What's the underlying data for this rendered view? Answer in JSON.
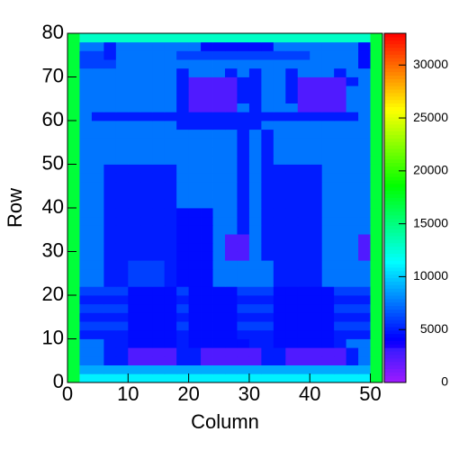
{
  "chart_data": {
    "type": "heatmap",
    "xlabel": "Column",
    "ylabel": "Row",
    "xlim": [
      0,
      52
    ],
    "ylim": [
      0,
      80
    ],
    "zlim": [
      0,
      33000
    ],
    "xticks": [
      0,
      10,
      20,
      30,
      40,
      50
    ],
    "yticks": [
      0,
      10,
      20,
      30,
      40,
      50,
      60,
      70,
      80
    ],
    "zticks": [
      0,
      5000,
      10000,
      15000,
      20000,
      25000,
      30000
    ],
    "z": [
      [
        17000,
        11000,
        11000,
        11000,
        11000,
        11000,
        11000,
        11000,
        11000,
        11000,
        11000,
        11000,
        11000,
        11000,
        11000,
        11000,
        11000,
        11000,
        11000,
        11000,
        11000,
        11000,
        11000,
        11000,
        11000,
        17000
      ],
      [
        17000,
        9000,
        9000,
        9000,
        9000,
        9000,
        9000,
        9000,
        9000,
        9000,
        9000,
        9000,
        9000,
        9000,
        9000,
        9000,
        9000,
        9000,
        9000,
        9000,
        9000,
        9000,
        9000,
        9000,
        9000,
        17000
      ],
      [
        17000,
        7500,
        7500,
        5000,
        5000,
        2500,
        2500,
        2500,
        2500,
        5000,
        5000,
        2500,
        2500,
        2500,
        2500,
        2500,
        5000,
        5000,
        2500,
        2500,
        2500,
        2500,
        2500,
        5000,
        7500,
        17000
      ],
      [
        17000,
        7500,
        7500,
        5000,
        5000,
        2500,
        2500,
        2500,
        2500,
        5000,
        5000,
        2500,
        2500,
        2500,
        2500,
        2500,
        5000,
        5000,
        2500,
        2500,
        2500,
        2500,
        2500,
        5000,
        7500,
        17000
      ],
      [
        17000,
        7500,
        7500,
        5000,
        5000,
        4500,
        4500,
        4500,
        4500,
        5000,
        4500,
        4500,
        4500,
        4500,
        4500,
        5000,
        5000,
        4500,
        4500,
        4500,
        4500,
        4500,
        5000,
        7500,
        7500,
        17000
      ],
      [
        17000,
        5000,
        5000,
        5000,
        5000,
        4500,
        4500,
        4500,
        4500,
        5000,
        4500,
        4500,
        4500,
        4500,
        5000,
        5000,
        5000,
        4500,
        4500,
        4500,
        4500,
        4500,
        5000,
        5000,
        5000,
        17000
      ],
      [
        17000,
        6000,
        6000,
        6000,
        6000,
        4500,
        4500,
        4500,
        4500,
        6000,
        4500,
        4500,
        4500,
        4500,
        6000,
        6000,
        6000,
        4500,
        4500,
        4500,
        4500,
        4500,
        6000,
        6000,
        6000,
        17000
      ],
      [
        17000,
        5000,
        5000,
        5000,
        5000,
        4500,
        4500,
        4500,
        4500,
        5000,
        4500,
        4500,
        4500,
        4500,
        5000,
        5000,
        5000,
        4500,
        4500,
        4500,
        4500,
        4500,
        5000,
        5000,
        5000,
        17000
      ],
      [
        17000,
        6000,
        6000,
        6000,
        6000,
        4500,
        4500,
        4500,
        4500,
        6000,
        4500,
        4500,
        4500,
        4500,
        6000,
        6000,
        6000,
        4500,
        4500,
        4500,
        4500,
        4500,
        6000,
        6000,
        6000,
        17000
      ],
      [
        17000,
        5000,
        5000,
        5000,
        5000,
        4500,
        4500,
        4500,
        4500,
        5000,
        4500,
        4500,
        4500,
        4500,
        5000,
        5000,
        5000,
        4500,
        4500,
        4500,
        4500,
        4500,
        5000,
        5000,
        5000,
        17000
      ],
      [
        17000,
        6000,
        6000,
        6000,
        6000,
        4500,
        4500,
        4500,
        4500,
        6000,
        4500,
        4500,
        4500,
        4500,
        6000,
        6000,
        6000,
        4500,
        4500,
        4500,
        4500,
        4500,
        6000,
        6000,
        6000,
        17000
      ],
      [
        17000,
        7500,
        7500,
        5000,
        5000,
        6000,
        6000,
        6000,
        5000,
        4500,
        4500,
        4500,
        7500,
        7500,
        7500,
        7500,
        7500,
        5000,
        5000,
        5000,
        5000,
        7500,
        7500,
        7500,
        7500,
        17000
      ],
      [
        17000,
        7500,
        7500,
        5000,
        5000,
        6000,
        6000,
        6000,
        5000,
        4500,
        4500,
        4500,
        7500,
        7500,
        7500,
        7500,
        7500,
        5000,
        5000,
        5000,
        5000,
        7500,
        7500,
        7500,
        7500,
        17000
      ],
      [
        17000,
        7500,
        7500,
        5000,
        5000,
        6000,
        6000,
        6000,
        5000,
        4500,
        4500,
        4500,
        7500,
        7500,
        7500,
        7500,
        7500,
        5000,
        5000,
        5000,
        5000,
        7500,
        7500,
        7500,
        7500,
        17000
      ],
      [
        17000,
        7500,
        7500,
        5000,
        5000,
        5000,
        5000,
        5000,
        5000,
        4500,
        4500,
        4500,
        7500,
        2500,
        2500,
        7500,
        5000,
        5000,
        5000,
        5000,
        5000,
        7500,
        7500,
        7500,
        2500,
        17000
      ],
      [
        17000,
        7500,
        7500,
        5000,
        5000,
        5000,
        5000,
        5000,
        5000,
        4500,
        4500,
        4500,
        7500,
        2500,
        2500,
        7500,
        5000,
        5000,
        5000,
        5000,
        5000,
        7500,
        7500,
        7500,
        2500,
        17000
      ],
      [
        17000,
        7500,
        7500,
        5000,
        5000,
        5000,
        5000,
        5000,
        5000,
        4500,
        4500,
        4500,
        7500,
        2500,
        2500,
        7500,
        5000,
        5000,
        5000,
        5000,
        5000,
        7500,
        7500,
        7500,
        2500,
        17000
      ],
      [
        17000,
        7500,
        7500,
        5000,
        5000,
        5000,
        5000,
        5000,
        5000,
        4500,
        4500,
        4500,
        7500,
        7500,
        5000,
        7500,
        5000,
        5000,
        5000,
        5000,
        5000,
        7500,
        7500,
        7500,
        7500,
        17000
      ],
      [
        17000,
        7500,
        7500,
        5000,
        5000,
        5000,
        5000,
        5000,
        5000,
        4500,
        4500,
        4500,
        7500,
        7500,
        5000,
        7500,
        5000,
        5000,
        5000,
        5000,
        5000,
        7500,
        7500,
        7500,
        7500,
        17000
      ],
      [
        17000,
        7500,
        7500,
        5000,
        5000,
        5000,
        5000,
        5000,
        5000,
        4500,
        4500,
        4500,
        7500,
        7500,
        5000,
        7500,
        5000,
        5000,
        5000,
        5000,
        5000,
        7500,
        7500,
        7500,
        7500,
        17000
      ],
      [
        17000,
        7500,
        7500,
        5000,
        5000,
        5000,
        5000,
        5000,
        5000,
        7500,
        7500,
        7500,
        7500,
        7500,
        5000,
        7500,
        5000,
        5000,
        5000,
        5000,
        5000,
        7500,
        7500,
        7500,
        7500,
        17000
      ],
      [
        17000,
        7500,
        7500,
        5000,
        5000,
        5000,
        5000,
        5000,
        5000,
        7500,
        7500,
        7500,
        7500,
        7500,
        5000,
        7500,
        5000,
        5000,
        5000,
        5000,
        5000,
        7500,
        7500,
        7500,
        7500,
        17000
      ],
      [
        17000,
        7500,
        7500,
        5000,
        5000,
        5000,
        5000,
        5000,
        5000,
        7500,
        7500,
        7500,
        7500,
        7500,
        5000,
        7500,
        5000,
        5000,
        5000,
        5000,
        5000,
        7500,
        7500,
        7500,
        7500,
        17000
      ],
      [
        17000,
        7500,
        7500,
        5000,
        5000,
        5000,
        5000,
        5000,
        5000,
        7500,
        7500,
        7500,
        7500,
        7500,
        5000,
        7500,
        5000,
        5000,
        5000,
        5000,
        5000,
        7500,
        7500,
        7500,
        7500,
        17000
      ],
      [
        17000,
        7500,
        7500,
        5000,
        5000,
        5000,
        5000,
        5000,
        5000,
        7500,
        7500,
        7500,
        7500,
        7500,
        5000,
        7500,
        5000,
        5000,
        5000,
        5000,
        5000,
        7500,
        7500,
        7500,
        7500,
        17000
      ],
      [
        17000,
        7500,
        7500,
        7500,
        7500,
        7500,
        7500,
        7500,
        7500,
        7500,
        7500,
        7500,
        7500,
        7500,
        5000,
        7500,
        5000,
        7500,
        7500,
        7500,
        7500,
        7500,
        7500,
        7500,
        7500,
        17000
      ],
      [
        17000,
        7500,
        7500,
        7500,
        7500,
        7500,
        7500,
        7500,
        7500,
        7500,
        7500,
        7500,
        7500,
        7500,
        5000,
        7500,
        5000,
        7500,
        7500,
        7500,
        7500,
        7500,
        7500,
        7500,
        7500,
        17000
      ],
      [
        17000,
        7500,
        7500,
        7500,
        7500,
        7500,
        7500,
        7500,
        7500,
        7500,
        7500,
        7500,
        7500,
        7500,
        5000,
        7500,
        5000,
        7500,
        7500,
        7500,
        7500,
        7500,
        7500,
        7500,
        7500,
        17000
      ],
      [
        17000,
        7500,
        7500,
        7500,
        7500,
        7500,
        7500,
        7500,
        7500,
        7500,
        7500,
        7500,
        7500,
        7500,
        5000,
        7500,
        5000,
        7500,
        7500,
        7500,
        7500,
        7500,
        7500,
        7500,
        7500,
        17000
      ],
      [
        17000,
        7500,
        7500,
        7500,
        7500,
        7500,
        7500,
        7500,
        7500,
        5000,
        5000,
        5000,
        5000,
        5000,
        5000,
        5000,
        7500,
        7500,
        7500,
        7500,
        7500,
        7500,
        7500,
        7500,
        7500,
        17000
      ],
      [
        17000,
        7500,
        5000,
        5000,
        5000,
        5000,
        5000,
        5000,
        5000,
        5000,
        5000,
        5000,
        5000,
        5000,
        5000,
        5000,
        5000,
        5000,
        5000,
        5000,
        5000,
        5000,
        5000,
        5000,
        7500,
        17000
      ],
      [
        17000,
        7500,
        7500,
        7500,
        7500,
        7500,
        7500,
        7500,
        7500,
        5000,
        2500,
        2500,
        2500,
        2500,
        7500,
        5000,
        7500,
        7500,
        7500,
        2500,
        2500,
        2500,
        2500,
        7500,
        7500,
        17000
      ],
      [
        17000,
        7500,
        7500,
        7500,
        7500,
        7500,
        7500,
        7500,
        7500,
        5000,
        2500,
        2500,
        2500,
        2500,
        5000,
        5000,
        7500,
        7500,
        5000,
        2500,
        2500,
        2500,
        2500,
        7500,
        7500,
        17000
      ],
      [
        17000,
        7500,
        7500,
        7500,
        7500,
        7500,
        7500,
        7500,
        7500,
        5000,
        2500,
        2500,
        2500,
        2500,
        5000,
        5000,
        7500,
        7500,
        5000,
        2500,
        2500,
        2500,
        2500,
        7500,
        7500,
        17000
      ],
      [
        17000,
        7500,
        7500,
        7500,
        7500,
        7500,
        7500,
        7500,
        7500,
        5000,
        2500,
        2500,
        2500,
        2500,
        5000,
        5000,
        7500,
        7500,
        5000,
        2500,
        2500,
        2500,
        2500,
        5000,
        7500,
        17000
      ],
      [
        17000,
        7500,
        7500,
        7500,
        7500,
        7500,
        7500,
        7500,
        7500,
        5000,
        7500,
        7500,
        7500,
        5000,
        7500,
        5000,
        7500,
        7500,
        5000,
        7500,
        7500,
        7500,
        5000,
        7500,
        7500,
        17000
      ],
      [
        17000,
        6000,
        6000,
        6000,
        7500,
        7500,
        7500,
        7500,
        7500,
        7500,
        7500,
        7500,
        7500,
        7500,
        7500,
        7500,
        7500,
        7500,
        7500,
        7500,
        7500,
        7500,
        7500,
        7500,
        4500,
        17000
      ],
      [
        17000,
        6000,
        6000,
        5000,
        7500,
        7500,
        7500,
        7500,
        7500,
        6000,
        6000,
        6000,
        6000,
        6000,
        6000,
        6000,
        6000,
        6000,
        6000,
        6000,
        7500,
        7500,
        7500,
        7500,
        4500,
        17000
      ],
      [
        17000,
        7500,
        7500,
        5000,
        7500,
        7500,
        7500,
        7500,
        7500,
        7500,
        7500,
        4500,
        4500,
        4500,
        4500,
        4500,
        4500,
        7500,
        7500,
        7500,
        7500,
        7500,
        7500,
        7500,
        4500,
        17000
      ],
      [
        17000,
        13000,
        13000,
        13000,
        13000,
        13000,
        13000,
        13000,
        13000,
        13000,
        13000,
        13000,
        13000,
        13000,
        13000,
        13000,
        13000,
        13000,
        13000,
        13000,
        13000,
        13000,
        13000,
        13000,
        13000,
        17000
      ]
    ]
  }
}
